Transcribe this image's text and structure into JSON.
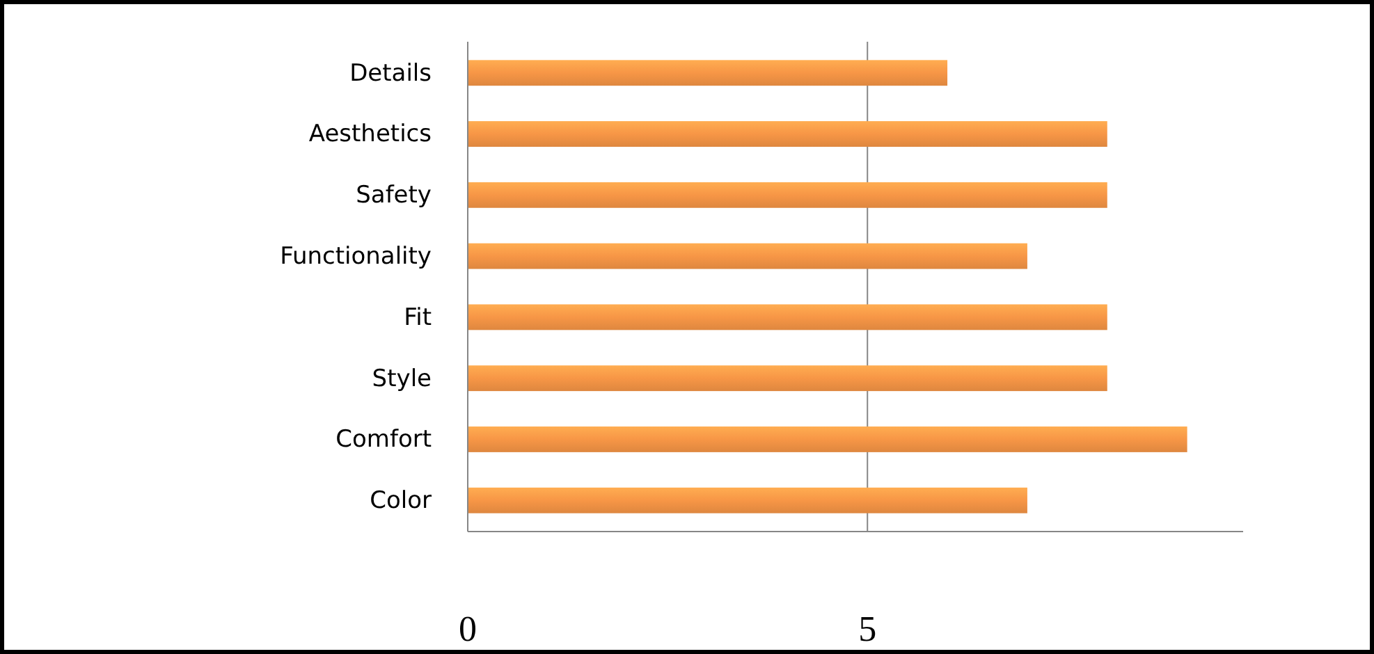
{
  "chart_data": {
    "type": "bar",
    "orientation": "horizontal",
    "categories": [
      "Details",
      "Aesthetics",
      "Safety",
      "Functionality",
      "Fit",
      "Style",
      "Comfort",
      "Color"
    ],
    "values": [
      6,
      8,
      8,
      7,
      8,
      8,
      9,
      7
    ],
    "color": "#f79646",
    "xlim": [
      0,
      9.7
    ],
    "xticks": [
      0,
      5
    ],
    "grid": "x"
  }
}
